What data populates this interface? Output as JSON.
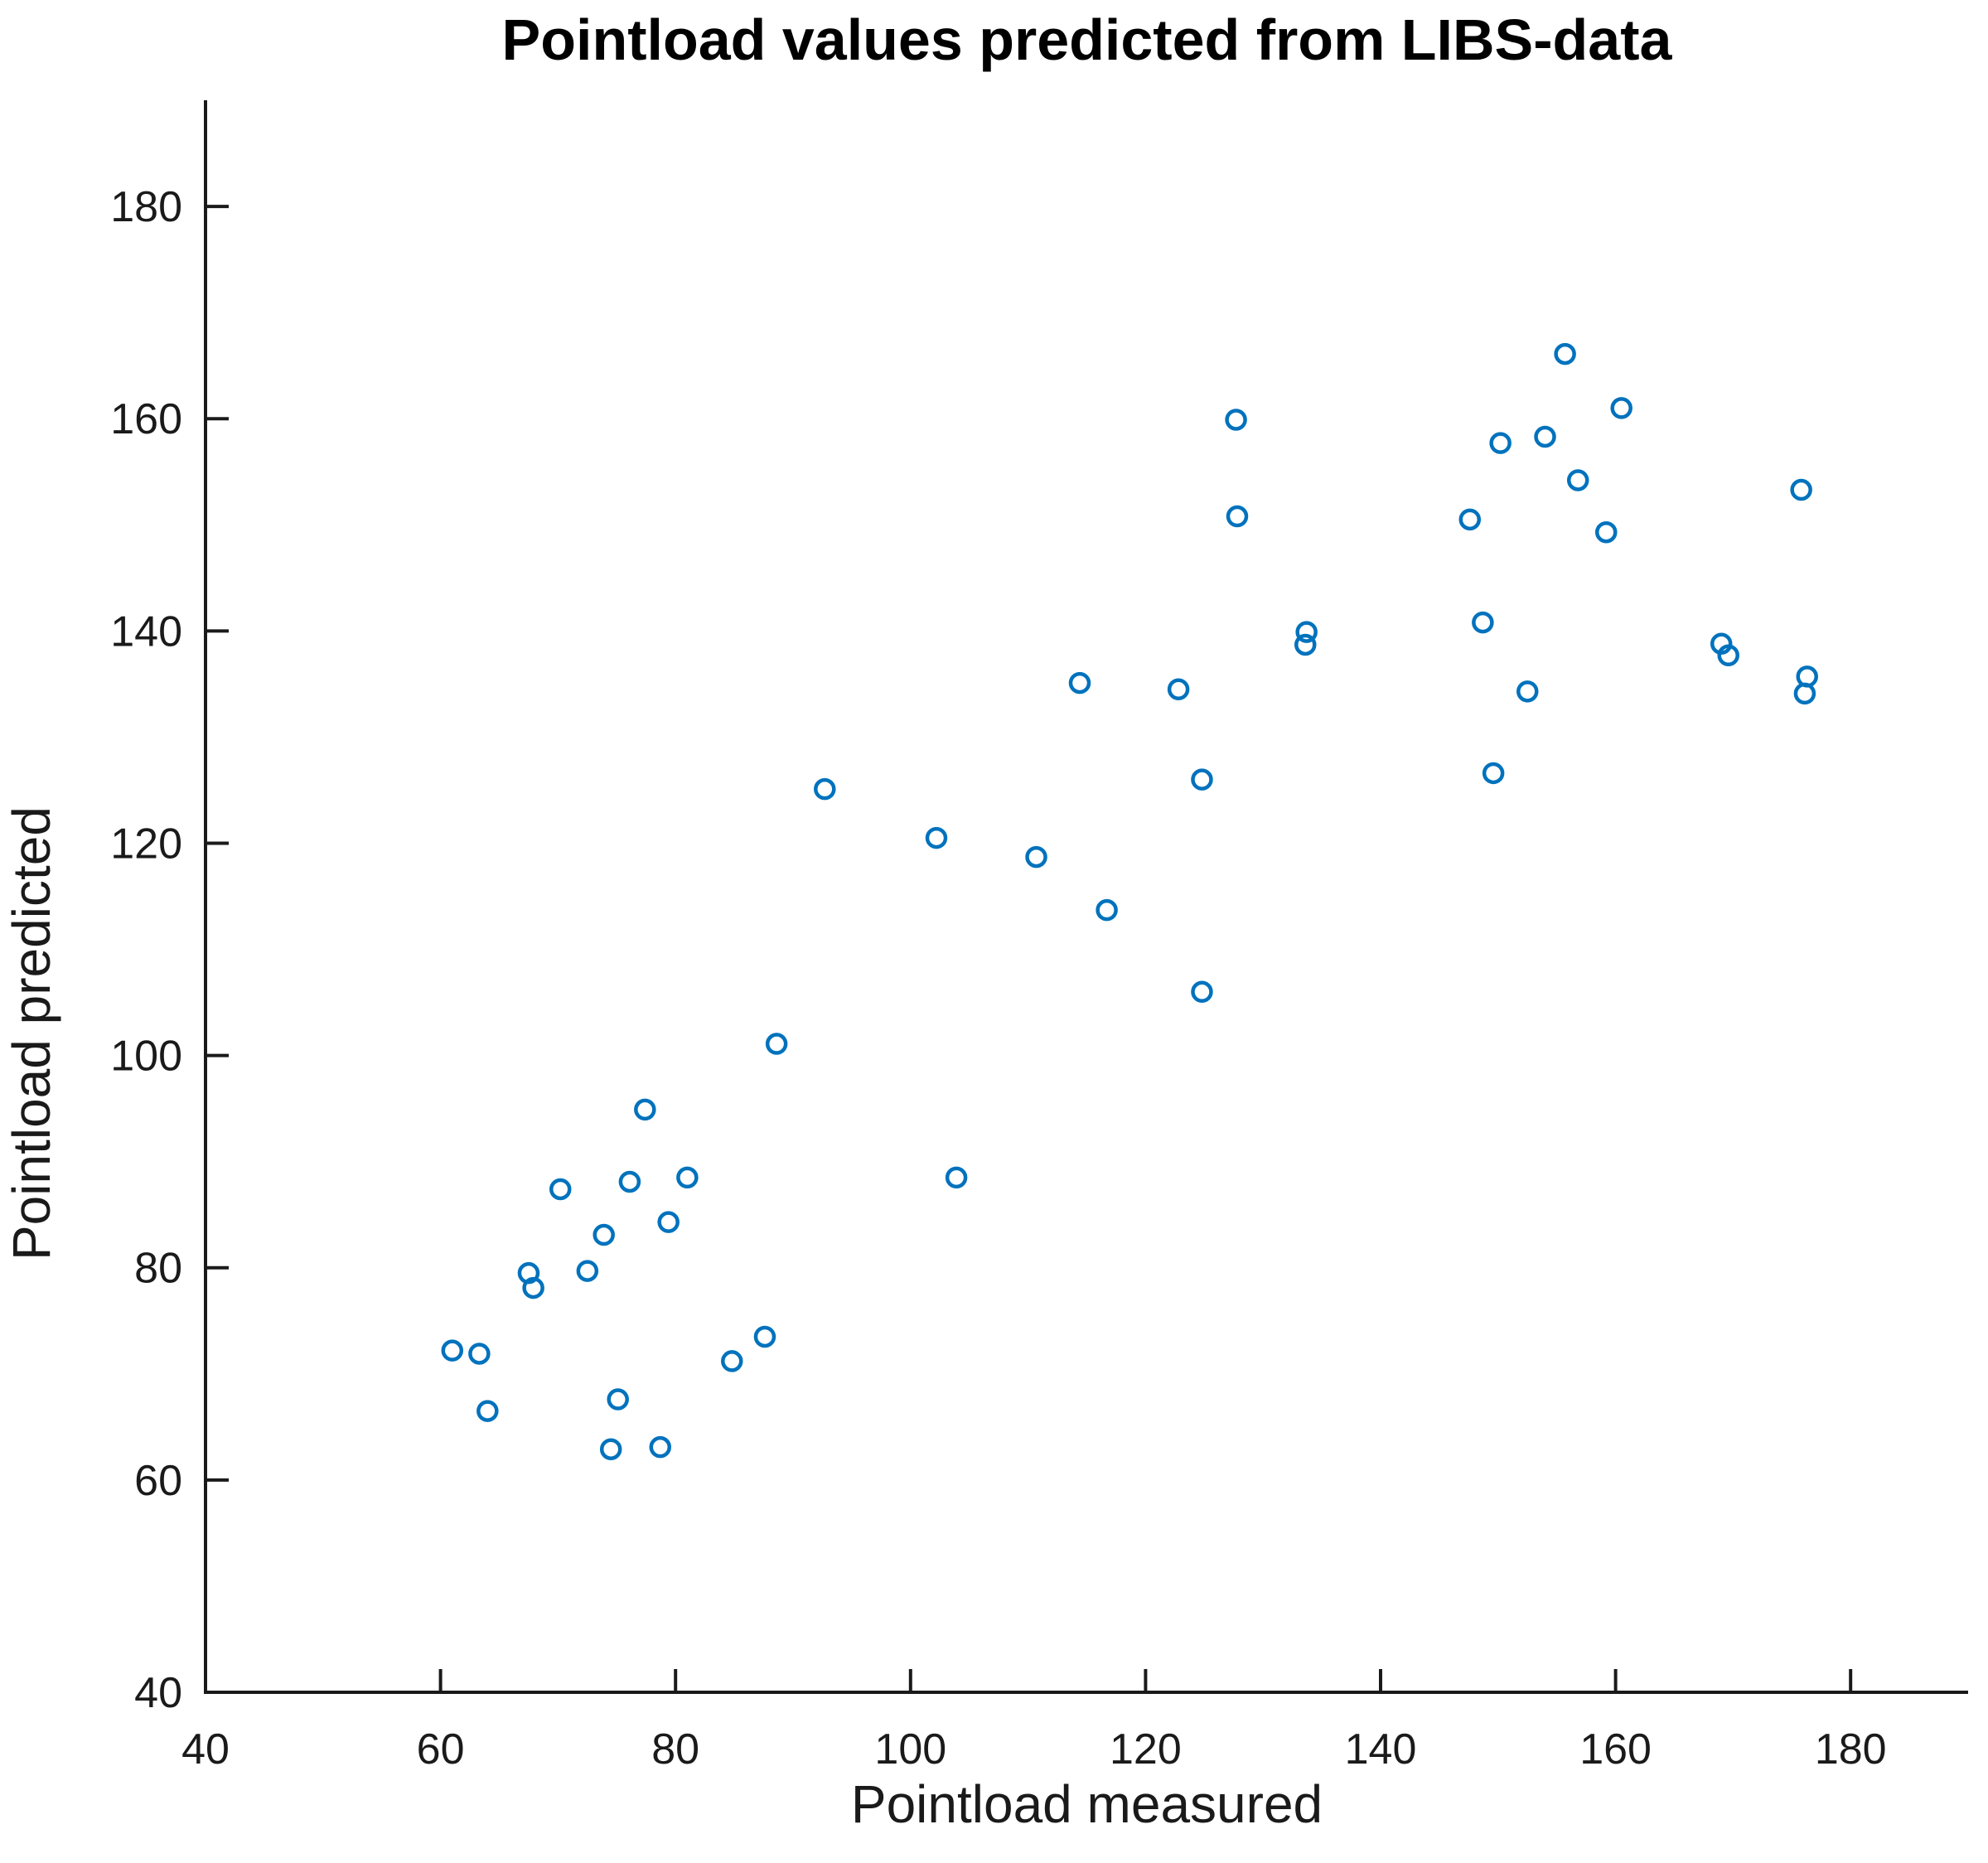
{
  "figure": {
    "background": "#ffffff",
    "axis_color": "#1a1a1a",
    "marker_color": "#0072BD"
  },
  "chart_data": {
    "type": "scatter",
    "title": "Pointload values predicted from LIBS-data",
    "xlabel": "Pointload measured",
    "ylabel": "Pointload predicted",
    "xlim": [
      40,
      190
    ],
    "ylim": [
      40,
      190
    ],
    "x_ticks": [
      40,
      60,
      80,
      100,
      120,
      140,
      160,
      180
    ],
    "y_ticks": [
      40,
      60,
      80,
      100,
      120,
      140,
      160,
      180
    ],
    "grid": false,
    "legend": "none",
    "marker": {
      "shape": "open-circle",
      "color": "#0072BD",
      "fill": "none"
    },
    "points": [
      [
        61.0,
        72.2
      ],
      [
        63.3,
        71.9
      ],
      [
        64.0,
        66.5
      ],
      [
        67.5,
        79.5
      ],
      [
        67.9,
        78.1
      ],
      [
        70.2,
        87.4
      ],
      [
        72.5,
        79.7
      ],
      [
        73.9,
        83.1
      ],
      [
        74.5,
        62.9
      ],
      [
        75.1,
        67.6
      ],
      [
        76.1,
        88.1
      ],
      [
        77.4,
        94.9
      ],
      [
        78.7,
        63.1
      ],
      [
        79.4,
        84.3
      ],
      [
        81.0,
        88.5
      ],
      [
        84.8,
        71.2
      ],
      [
        87.6,
        73.5
      ],
      [
        88.6,
        101.1
      ],
      [
        92.7,
        125.1
      ],
      [
        102.2,
        120.5
      ],
      [
        103.9,
        88.5
      ],
      [
        110.7,
        118.7
      ],
      [
        114.4,
        135.1
      ],
      [
        116.7,
        113.7
      ],
      [
        122.8,
        134.5
      ],
      [
        124.8,
        126.0
      ],
      [
        124.8,
        106.0
      ],
      [
        127.7,
        159.9
      ],
      [
        127.8,
        150.8
      ],
      [
        133.7,
        139.9
      ],
      [
        133.6,
        138.7
      ],
      [
        147.6,
        150.5
      ],
      [
        148.7,
        140.8
      ],
      [
        149.6,
        126.6
      ],
      [
        150.2,
        157.7
      ],
      [
        152.5,
        134.3
      ],
      [
        154.0,
        158.3
      ],
      [
        155.7,
        166.1
      ],
      [
        156.8,
        154.2
      ],
      [
        159.2,
        149.3
      ],
      [
        160.5,
        161.0
      ],
      [
        169.0,
        138.8
      ],
      [
        169.6,
        137.7
      ],
      [
        175.8,
        153.3
      ],
      [
        176.3,
        135.7
      ],
      [
        176.1,
        134.1
      ]
    ]
  }
}
